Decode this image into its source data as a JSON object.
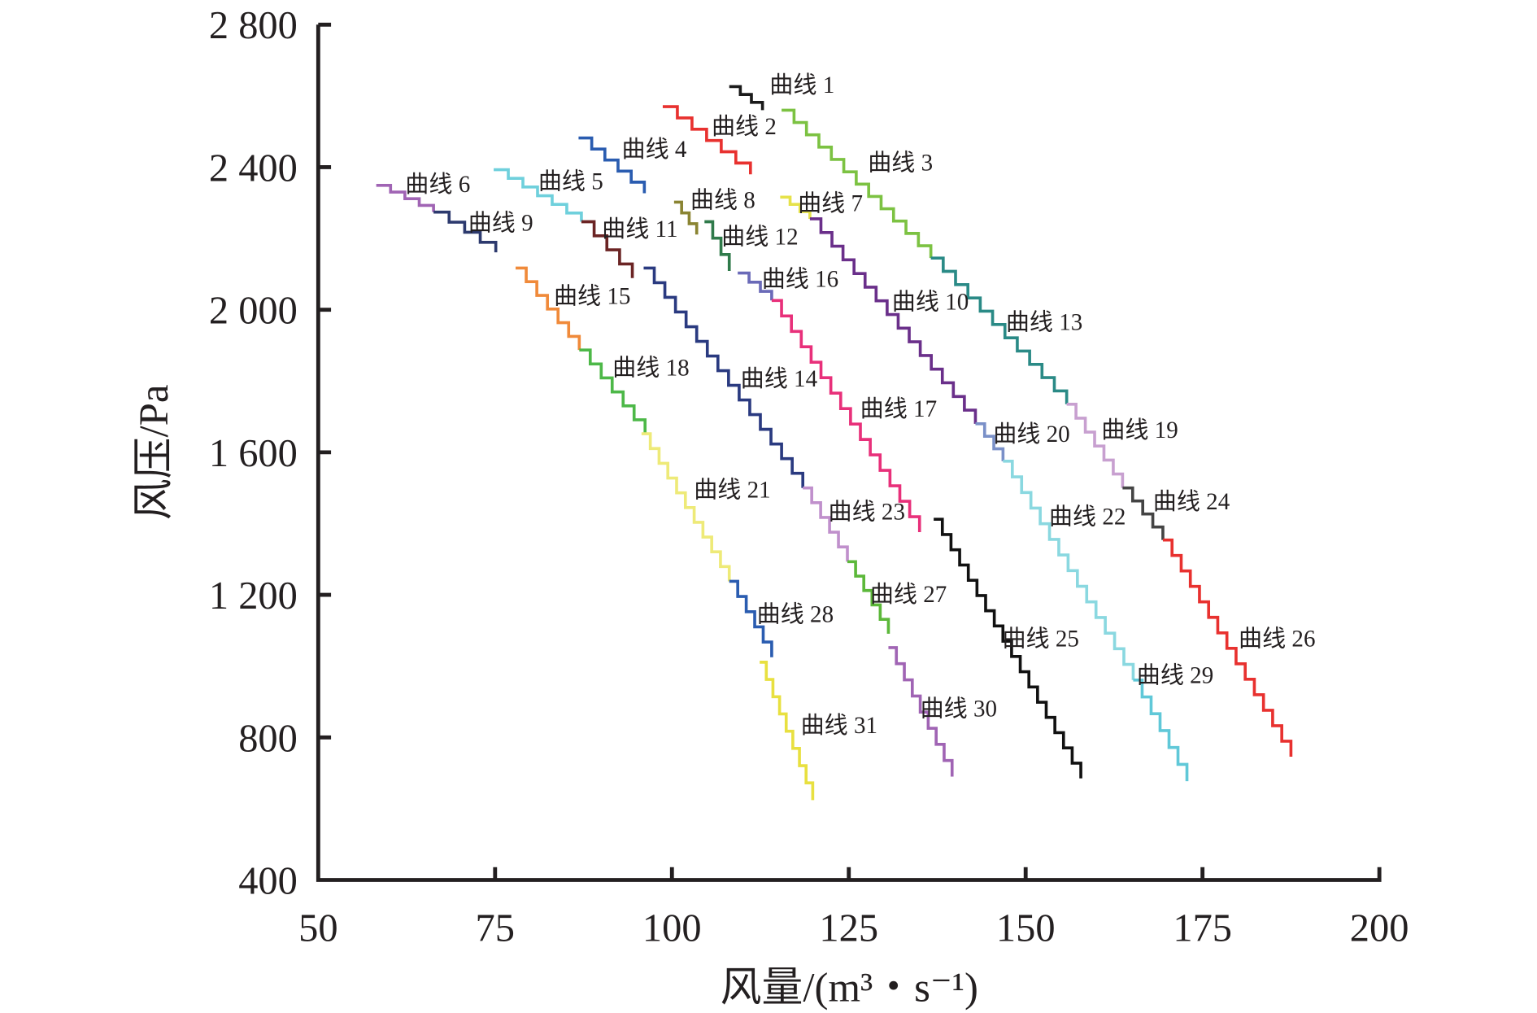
{
  "chart_data": {
    "type": "line",
    "title": "",
    "xlabel": "风量/(m³・s⁻¹)",
    "ylabel": "风压/Pa",
    "xlim": [
      50,
      200
    ],
    "ylim": [
      400,
      2800
    ],
    "xticks": [
      50,
      75,
      100,
      125,
      150,
      175,
      200
    ],
    "xtick_labels": [
      "50",
      "75",
      "100",
      "125",
      "150",
      "175",
      "200"
    ],
    "yticks": [
      400,
      800,
      1200,
      1600,
      2000,
      2400,
      2800
    ],
    "ytick_labels": [
      "400",
      "800",
      "1 200",
      "1 600",
      "2 000",
      "2 400",
      "2 800"
    ],
    "grid": false,
    "series": [
      {
        "name": "曲线 1",
        "color": "#1a1a1a",
        "x": [
          108.1,
          112.8
        ],
        "y": [
          2626,
          2560
        ],
        "label_at": [
          113.8,
          2631
        ]
      },
      {
        "name": "曲线 2",
        "color": "#e8312f",
        "x": [
          98.7,
          111.1
        ],
        "y": [
          2570,
          2380
        ],
        "label_at": [
          105.6,
          2515
        ]
      },
      {
        "name": "曲线 3",
        "color": "#7cc242",
        "x": [
          115.5,
          136.6
        ],
        "y": [
          2560,
          2145
        ],
        "label_at": [
          127.7,
          2413
        ]
      },
      {
        "name": "曲线 4",
        "color": "#2a5cb0",
        "x": [
          86.8,
          96.1
        ],
        "y": [
          2482,
          2327
        ],
        "label_at": [
          92.9,
          2451
        ]
      },
      {
        "name": "曲线 5",
        "color": "#6fd0dc",
        "x": [
          74.8,
          87.2
        ],
        "y": [
          2393,
          2247
        ],
        "label_at": [
          81.1,
          2360
        ]
      },
      {
        "name": "曲线 6",
        "color": "#a064b4",
        "x": [
          58.2,
          66.3
        ],
        "y": [
          2349,
          2274
        ],
        "label_at": [
          62.3,
          2352
        ]
      },
      {
        "name": "曲线 7",
        "color": "#e6e24a",
        "x": [
          115.3,
          119.5
        ],
        "y": [
          2316,
          2255
        ],
        "label_at": [
          117.8,
          2299
        ]
      },
      {
        "name": "曲线 8",
        "color": "#8a8432",
        "x": [
          100.3,
          103.5
        ],
        "y": [
          2302,
          2211
        ],
        "label_at": [
          102.6,
          2308
        ]
      },
      {
        "name": "曲线 9",
        "color": "#2d3a6e",
        "x": [
          66.3,
          75.1
        ],
        "y": [
          2274,
          2161
        ],
        "label_at": [
          71.2,
          2244
        ]
      },
      {
        "name": "曲线 10",
        "color": "#6a2f8a",
        "x": [
          119.5,
          142.9
        ],
        "y": [
          2255,
          1680
        ],
        "label_at": [
          131.1,
          2023
        ]
      },
      {
        "name": "曲线 11",
        "color": "#6b2424",
        "x": [
          87.2,
          94.4
        ],
        "y": [
          2247,
          2089
        ],
        "label_at": [
          90.1,
          2227
        ]
      },
      {
        "name": "曲线 12",
        "color": "#2f7a4a",
        "x": [
          104.6,
          108.1
        ],
        "y": [
          2247,
          2109
        ],
        "label_at": [
          107,
          2205
        ]
      },
      {
        "name": "曲线 13",
        "color": "#2a8a86",
        "x": [
          136.6,
          155.8
        ],
        "y": [
          2145,
          1735
        ],
        "label_at": [
          147.2,
          1965
        ]
      },
      {
        "name": "曲线 14",
        "color": "#2a3a80",
        "x": [
          96,
          118.5
        ],
        "y": [
          2117,
          1500
        ],
        "label_at": [
          109.7,
          1807
        ]
      },
      {
        "name": "曲线 15",
        "color": "#f08a3a",
        "x": [
          77.9,
          86.9
        ],
        "y": [
          2117,
          1887
        ],
        "label_at": [
          83.3,
          2039
        ]
      },
      {
        "name": "曲线 16",
        "color": "#6a6ab8",
        "x": [
          109.3,
          114.1
        ],
        "y": [
          2103,
          2026
        ],
        "label_at": [
          112.7,
          2087
        ]
      },
      {
        "name": "曲线 17",
        "color": "#e8307a",
        "x": [
          114.1,
          135
        ],
        "y": [
          2026,
          1376
        ],
        "label_at": [
          126.6,
          1722
        ]
      },
      {
        "name": "曲线 18",
        "color": "#4db848",
        "x": [
          86.9,
          96.2
        ],
        "y": [
          1887,
          1652
        ],
        "label_at": [
          91.6,
          1838
        ]
      },
      {
        "name": "曲线 19",
        "color": "#c8a0d0",
        "x": [
          155.8,
          163.7
        ],
        "y": [
          1735,
          1500
        ],
        "label_at": [
          160.7,
          1663
        ]
      },
      {
        "name": "曲线 20",
        "color": "#7a90c8",
        "x": [
          142.9,
          146.8
        ],
        "y": [
          1680,
          1575
        ],
        "label_at": [
          145.4,
          1652
        ]
      },
      {
        "name": "曲线 21",
        "color": "#eeea78",
        "x": [
          95.7,
          108.1
        ],
        "y": [
          1652,
          1238
        ],
        "label_at": [
          103.1,
          1495
        ]
      },
      {
        "name": "曲线 22",
        "color": "#8ad8e0",
        "x": [
          146.8,
          165.2
        ],
        "y": [
          1575,
          961
        ],
        "label_at": [
          153.3,
          1420
        ]
      },
      {
        "name": "曲线 23",
        "color": "#c090cc",
        "x": [
          118.5,
          124.8
        ],
        "y": [
          1500,
          1293
        ],
        "label_at": [
          122.1,
          1434
        ]
      },
      {
        "name": "曲线 24",
        "color": "#444444",
        "x": [
          163.7,
          169.4
        ],
        "y": [
          1500,
          1354
        ],
        "label_at": [
          168,
          1462
        ]
      },
      {
        "name": "曲线 25",
        "color": "#111111",
        "x": [
          137,
          157.8
        ],
        "y": [
          1412,
          685
        ],
        "label_at": [
          146.7,
          1077
        ]
      },
      {
        "name": "曲线 26",
        "color": "#e8312f",
        "x": [
          169.4,
          187.5
        ],
        "y": [
          1354,
          746
        ],
        "label_at": [
          180.1,
          1077
        ]
      },
      {
        "name": "曲线 27",
        "color": "#5cb83a",
        "x": [
          124.8,
          130.6
        ],
        "y": [
          1293,
          1091
        ],
        "label_at": [
          128,
          1202
        ]
      },
      {
        "name": "曲线 28",
        "color": "#2a5cb0",
        "x": [
          108.1,
          114.1
        ],
        "y": [
          1238,
          1025
        ],
        "label_at": [
          112,
          1146
        ]
      },
      {
        "name": "曲线 29",
        "color": "#60c8d8",
        "x": [
          165.2,
          172.8
        ],
        "y": [
          961,
          677
        ],
        "label_at": [
          165.7,
          975
        ]
      },
      {
        "name": "曲线 30",
        "color": "#a064b4",
        "x": [
          130.6,
          139.6
        ],
        "y": [
          1052,
          690
        ],
        "label_at": [
          135.1,
          881
        ]
      },
      {
        "name": "曲线 31",
        "color": "#e8e040",
        "x": [
          112.4,
          119.9
        ],
        "y": [
          1011,
          624
        ],
        "label_at": [
          118.2,
          834
        ]
      }
    ]
  }
}
